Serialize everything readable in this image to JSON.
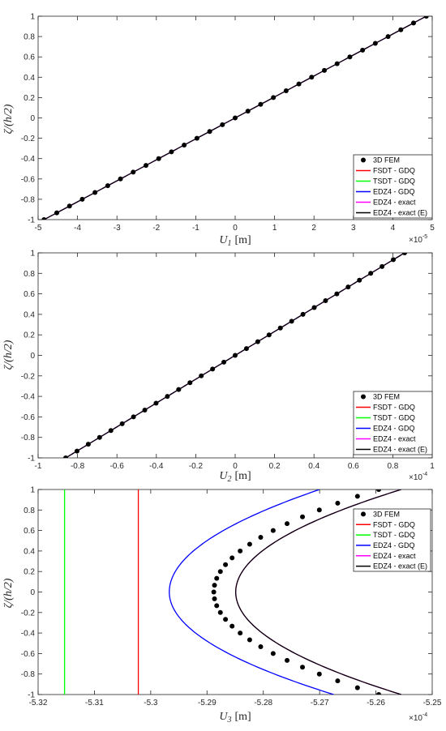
{
  "legend_entries": [
    {
      "label": "3D FEM",
      "color": "#000000",
      "marker": "dot"
    },
    {
      "label": "FSDT - GDQ",
      "color": "#ff0000"
    },
    {
      "label": "TSDT - GDQ",
      "color": "#00ff00"
    },
    {
      "label": "EDZ4 - GDQ",
      "color": "#0000ff"
    },
    {
      "label": "EDZ4 - exact",
      "color": "#ff00ff"
    },
    {
      "label": "EDZ4 - exact (E)",
      "color": "#000000"
    }
  ],
  "chart_data": [
    {
      "type": "line",
      "xlabel": "U_1 [m]",
      "xlabel_main": "U",
      "xlabel_sub": "1",
      "xlabel_unit": "[m]",
      "ylabel": "ζ/(h/2)",
      "xlim": [
        -5,
        5
      ],
      "ylim": [
        -1,
        1
      ],
      "x_multiplier": "×10^-5",
      "x_mult_base": "×10",
      "x_mult_exp": "-5",
      "xticks": [
        "-5",
        "-4",
        "-3",
        "-2",
        "-1",
        "0",
        "1",
        "2",
        "3",
        "4",
        "5"
      ],
      "yticks": [
        "-1",
        "-0.8",
        "-0.6",
        "-0.4",
        "-0.2",
        "0",
        "0.2",
        "0.4",
        "0.6",
        "0.8",
        "1"
      ],
      "legend_position": "bottom-right",
      "series": [
        {
          "name": "3D FEM",
          "color": "#000000",
          "kind": "linear_dots",
          "slope": 4.85
        },
        {
          "name": "FSDT - GDQ",
          "color": "#ff0000",
          "kind": "linear",
          "slope": 4.85
        },
        {
          "name": "TSDT - GDQ",
          "color": "#00ff00",
          "kind": "linear",
          "slope": 4.85
        },
        {
          "name": "EDZ4 - GDQ",
          "color": "#0000ff",
          "kind": "linear",
          "slope": 4.85
        },
        {
          "name": "EDZ4 - exact",
          "color": "#ff00ff",
          "kind": "linear",
          "slope": 4.85
        },
        {
          "name": "EDZ4 - exact (E)",
          "color": "#000000",
          "kind": "linear",
          "slope": 4.85
        }
      ]
    },
    {
      "type": "line",
      "xlabel": "U_2 [m]",
      "xlabel_main": "U",
      "xlabel_sub": "2",
      "xlabel_unit": "[m]",
      "ylabel": "ζ/(h/2)",
      "xlim": [
        -1,
        1
      ],
      "ylim": [
        -1,
        1
      ],
      "x_multiplier": "×10^-4",
      "x_mult_base": "×10",
      "x_mult_exp": "-4",
      "xticks": [
        "-1",
        "-0.8",
        "-0.6",
        "-0.4",
        "-0.2",
        "0",
        "0.2",
        "0.4",
        "0.6",
        "0.8",
        "1"
      ],
      "yticks": [
        "-1",
        "-0.8",
        "-0.6",
        "-0.4",
        "-0.2",
        "0",
        "0.2",
        "0.4",
        "0.6",
        "0.8",
        "1"
      ],
      "legend_position": "bottom-right",
      "series": [
        {
          "name": "3D FEM",
          "color": "#000000",
          "kind": "linear_dots",
          "slope": 0.86
        },
        {
          "name": "FSDT - GDQ",
          "color": "#ff0000",
          "kind": "linear",
          "slope": 0.86
        },
        {
          "name": "TSDT - GDQ",
          "color": "#00ff00",
          "kind": "linear",
          "slope": 0.86
        },
        {
          "name": "EDZ4 - GDQ",
          "color": "#0000ff",
          "kind": "linear",
          "slope": 0.86
        },
        {
          "name": "EDZ4 - exact",
          "color": "#ff00ff",
          "kind": "linear",
          "slope": 0.86
        },
        {
          "name": "EDZ4 - exact (E)",
          "color": "#000000",
          "kind": "linear",
          "slope": 0.86
        }
      ]
    },
    {
      "type": "line",
      "xlabel": "U_3 [m]",
      "xlabel_main": "U",
      "xlabel_sub": "3",
      "xlabel_unit": "[m]",
      "ylabel": "ζ/(h/2)",
      "xlim": [
        -5.32,
        -5.25
      ],
      "ylim": [
        -1,
        1
      ],
      "x_multiplier": "×10^-4",
      "x_mult_base": "×10",
      "x_mult_exp": "-4",
      "xticks": [
        "-5.32",
        "-5.31",
        "-5.3",
        "-5.29",
        "-5.28",
        "-5.27",
        "-5.26",
        "-5.25"
      ],
      "yticks": [
        "-1",
        "-0.8",
        "-0.6",
        "-0.4",
        "-0.2",
        "0",
        "0.2",
        "0.4",
        "0.6",
        "0.8",
        "1"
      ],
      "legend_position": "top-right",
      "series": [
        {
          "name": "3D FEM",
          "color": "#000000",
          "kind": "parabola_dots",
          "vertex": -5.2888,
          "top": -5.2595,
          "bottom": -5.2595
        },
        {
          "name": "FSDT - GDQ",
          "color": "#ff0000",
          "kind": "vertical",
          "x": -5.3022
        },
        {
          "name": "TSDT - GDQ",
          "color": "#00ff00",
          "kind": "vertical",
          "x": -5.3153
        },
        {
          "name": "EDZ4 - GDQ",
          "color": "#0000ff",
          "kind": "parabola",
          "vertex": -5.2967,
          "top": -5.27,
          "bottom": -5.2675
        },
        {
          "name": "EDZ4 - exact",
          "color": "#ff00ff",
          "kind": "parabola",
          "vertex": -5.2849,
          "top": -5.2555,
          "bottom": -5.2555
        },
        {
          "name": "EDZ4 - exact (E)",
          "color": "#000000",
          "kind": "parabola",
          "vertex": -5.2849,
          "top": -5.2555,
          "bottom": -5.2555
        }
      ]
    }
  ]
}
